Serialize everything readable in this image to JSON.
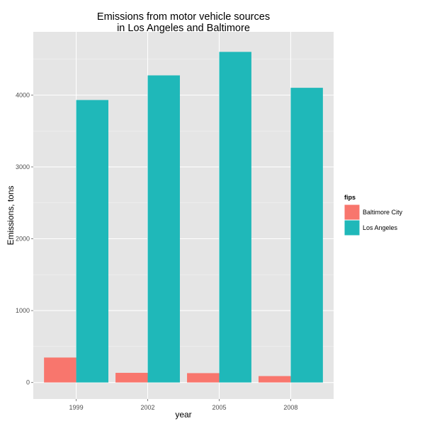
{
  "chart_data": {
    "type": "bar",
    "title": "Emissions from motor vehicle sources\nin Los Angeles and Baltimore",
    "xlabel": "year",
    "ylabel": "Emissions, tons",
    "categories": [
      "1999",
      "2002",
      "2005",
      "2008"
    ],
    "series": [
      {
        "name": "Baltimore City",
        "color": "#f8766d",
        "values": [
          347,
          134,
          130,
          89
        ]
      },
      {
        "name": "Los Angeles",
        "color": "#1fb8b9",
        "values": [
          3931,
          4274,
          4601,
          4101
        ]
      }
    ],
    "ylim": [
      -230,
      4880
    ],
    "yticks": [
      0,
      1000,
      2000,
      3000,
      4000
    ],
    "grid": true,
    "panel_background": "#e5e5e5",
    "grid_color": "#ffffff",
    "legend": {
      "title": "fips",
      "position": "right"
    }
  }
}
